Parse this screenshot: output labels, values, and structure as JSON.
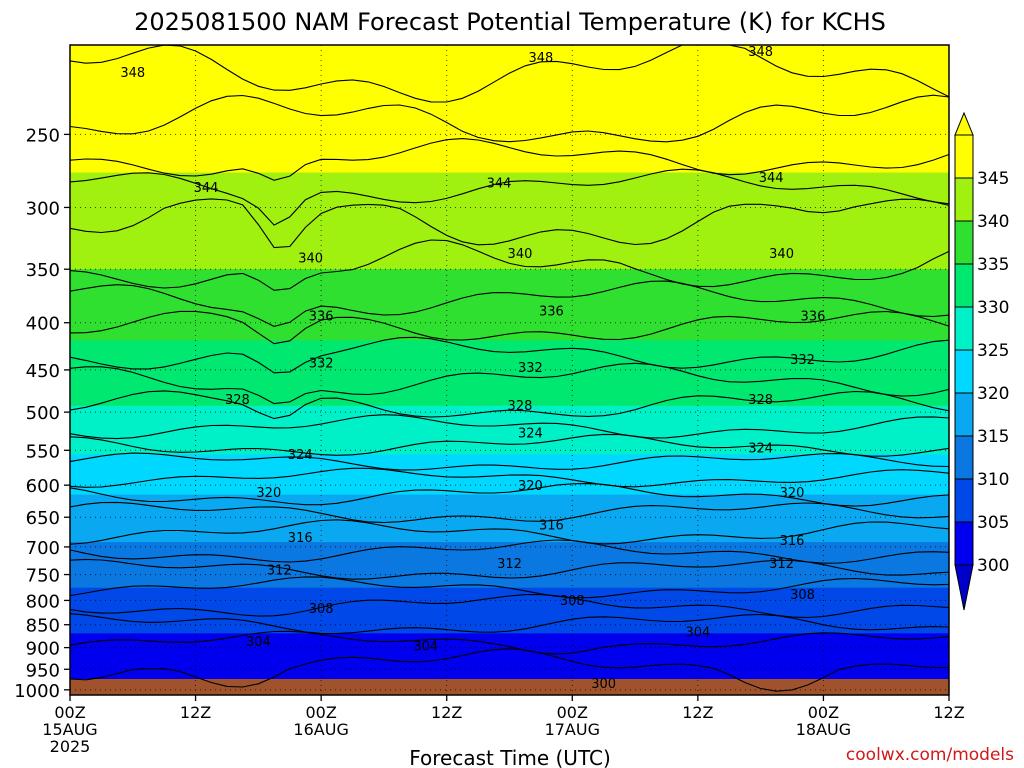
{
  "chart_data": {
    "type": "heatmap",
    "title": "2025081500 NAM Forecast Potential Temperature (K) for KCHS",
    "xlabel": "Forecast Time (UTC)",
    "ylabel": "",
    "credit": "coolwx.com/models",
    "x_ticks": [
      {
        "hours": 0,
        "label": "00Z",
        "sub": "15AUG",
        "sub2": "2025"
      },
      {
        "hours": 12,
        "label": "12Z",
        "sub": "",
        "sub2": ""
      },
      {
        "hours": 24,
        "label": "00Z",
        "sub": "16AUG",
        "sub2": ""
      },
      {
        "hours": 36,
        "label": "12Z",
        "sub": "",
        "sub2": ""
      },
      {
        "hours": 48,
        "label": "00Z",
        "sub": "17AUG",
        "sub2": ""
      },
      {
        "hours": 60,
        "label": "12Z",
        "sub": "",
        "sub2": ""
      },
      {
        "hours": 72,
        "label": "00Z",
        "sub": "18AUG",
        "sub2": ""
      },
      {
        "hours": 84,
        "label": "12Z",
        "sub": "",
        "sub2": ""
      }
    ],
    "xlim_hours": [
      0,
      84
    ],
    "y_ticks": [
      250,
      300,
      350,
      400,
      450,
      500,
      550,
      600,
      650,
      700,
      750,
      800,
      850,
      900,
      950,
      1000
    ],
    "ylim_hPa": [
      200,
      1013
    ],
    "y_scale": "log-pressure",
    "grid": true,
    "colorbar": {
      "levels": [
        300,
        305,
        310,
        315,
        320,
        325,
        330,
        335,
        340,
        345
      ],
      "colors": [
        "#0000ee",
        "#0048e8",
        "#0a78e0",
        "#0aa8f0",
        "#00d8ff",
        "#00f0c8",
        "#00e870",
        "#30e030",
        "#a0f010",
        "#ffff00"
      ],
      "under_color": "#0000cc",
      "over_color": "#ffff00",
      "position": "right"
    },
    "contour_interval": 2,
    "contour_labels": [
      {
        "hours": 6,
        "hPa": 214,
        "value": 348
      },
      {
        "hours": 45,
        "hPa": 206,
        "value": 348
      },
      {
        "hours": 66,
        "hPa": 203,
        "value": 348
      },
      {
        "hours": 13,
        "hPa": 285,
        "value": 344
      },
      {
        "hours": 41,
        "hPa": 282,
        "value": 344
      },
      {
        "hours": 67,
        "hPa": 278,
        "value": 344
      },
      {
        "hours": 23,
        "hPa": 340,
        "value": 340
      },
      {
        "hours": 43,
        "hPa": 336,
        "value": 340
      },
      {
        "hours": 68,
        "hPa": 336,
        "value": 340
      },
      {
        "hours": 24,
        "hPa": 393,
        "value": 336
      },
      {
        "hours": 46,
        "hPa": 388,
        "value": 336
      },
      {
        "hours": 71,
        "hPa": 393,
        "value": 336
      },
      {
        "hours": 24,
        "hPa": 442,
        "value": 332
      },
      {
        "hours": 44,
        "hPa": 447,
        "value": 332
      },
      {
        "hours": 70,
        "hPa": 438,
        "value": 332
      },
      {
        "hours": 16,
        "hPa": 484,
        "value": 328
      },
      {
        "hours": 43,
        "hPa": 491,
        "value": 328
      },
      {
        "hours": 66,
        "hPa": 484,
        "value": 328
      },
      {
        "hours": 22,
        "hPa": 555,
        "value": 324
      },
      {
        "hours": 44,
        "hPa": 526,
        "value": 324
      },
      {
        "hours": 66,
        "hPa": 546,
        "value": 324
      },
      {
        "hours": 19,
        "hPa": 610,
        "value": 320
      },
      {
        "hours": 44,
        "hPa": 600,
        "value": 320
      },
      {
        "hours": 69,
        "hPa": 610,
        "value": 320
      },
      {
        "hours": 22,
        "hPa": 683,
        "value": 316
      },
      {
        "hours": 46,
        "hPa": 662,
        "value": 316
      },
      {
        "hours": 69,
        "hPa": 688,
        "value": 316
      },
      {
        "hours": 20,
        "hPa": 741,
        "value": 312
      },
      {
        "hours": 42,
        "hPa": 729,
        "value": 312
      },
      {
        "hours": 68,
        "hPa": 729,
        "value": 312
      },
      {
        "hours": 24,
        "hPa": 815,
        "value": 308
      },
      {
        "hours": 48,
        "hPa": 799,
        "value": 308
      },
      {
        "hours": 70,
        "hPa": 787,
        "value": 308
      },
      {
        "hours": 18,
        "hPa": 885,
        "value": 304
      },
      {
        "hours": 34,
        "hPa": 895,
        "value": 304
      },
      {
        "hours": 60,
        "hPa": 865,
        "value": 304
      },
      {
        "hours": 51,
        "hPa": 983,
        "value": 300
      }
    ]
  }
}
